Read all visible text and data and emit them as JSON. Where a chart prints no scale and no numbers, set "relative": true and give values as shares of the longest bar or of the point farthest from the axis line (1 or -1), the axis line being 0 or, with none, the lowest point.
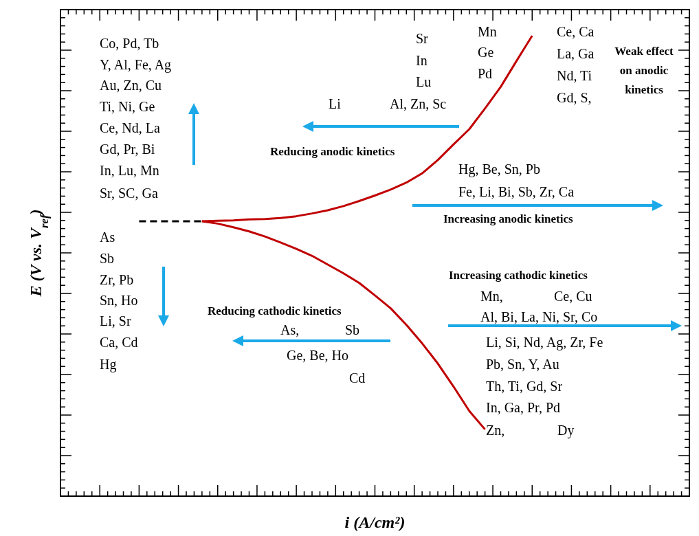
{
  "chart_data": {
    "type": "line",
    "relative": true,
    "xlabel": "i (A/cm²)",
    "ylabel": "E (V vs. V$_{ref}$)",
    "marker": "none",
    "categories": [
      null,
      null,
      null,
      null,
      null,
      null,
      null,
      null,
      null,
      null,
      null,
      null,
      null,
      null,
      null,
      null,
      null,
      null,
      null,
      null,
      null,
      null,
      null,
      null,
      null,
      null,
      null,
      null,
      null,
      null,
      null,
      null,
      null,
      null,
      null,
      null,
      null,
      null,
      null,
      null,
      null
    ],
    "series": [
      {
        "color": "#c00000",
        "line_style": "solid",
        "values": [
          null,
          null,
          null,
          null,
          null,
          null,
          null,
          null,
          null,
          0.597,
          0.598,
          0.599,
          0.601,
          0.602,
          0.604,
          0.608,
          0.614,
          0.621,
          0.63,
          0.641,
          0.653,
          0.666,
          0.681,
          0.701,
          0.73,
          0.764,
          0.797,
          0.842,
          0.889,
          0.945,
          1.0,
          null,
          null,
          null,
          null,
          null,
          null,
          null,
          null,
          null,
          null
        ]
      },
      {
        "color": "#c00000",
        "line_style": "solid",
        "values": [
          null,
          null,
          null,
          null,
          null,
          null,
          null,
          null,
          null,
          0.597,
          0.592,
          0.584,
          0.575,
          0.564,
          0.551,
          0.537,
          0.522,
          0.503,
          0.484,
          0.463,
          0.436,
          0.408,
          0.372,
          0.332,
          0.288,
          0.238,
          0.185,
          0.145,
          null,
          null,
          null,
          null,
          null,
          null,
          null,
          null,
          null,
          null,
          null,
          null,
          null
        ]
      },
      {
        "color": "#000000",
        "line_style": "dashed",
        "values": [
          null,
          null,
          null,
          null,
          null,
          0.597,
          0.597,
          0.597,
          0.597,
          0.597,
          null,
          null,
          null,
          null,
          null,
          null,
          null,
          null,
          null,
          null,
          null,
          null,
          null,
          null,
          null,
          null,
          null,
          null,
          null,
          null,
          null,
          null,
          null,
          null,
          null,
          null,
          null,
          null,
          null,
          null,
          null
        ]
      }
    ],
    "annotations": [
      "Co, Pd, Tb",
      "Y, Al, Fe, Ag",
      "Au, Zn, Cu",
      "Ti, Ni, Ge",
      "Ce, Nd, La",
      "Gd, Pr, Bi",
      "In, Lu, Mn",
      "Sr, SC, Ga",
      "As",
      "Sb",
      "Zr, Pb",
      "Sn, Ho",
      "Li, Sr",
      "Ca, Cd",
      "Hg",
      "Sr",
      "In",
      "Lu",
      "Li",
      "Al, Zn, Sc",
      "Mn",
      "Ge",
      "Pd",
      "Ce, Ca",
      "La, Ga",
      "Nd, Ti",
      "Gd, S,",
      "Weak effect",
      "on anodic",
      "kinetics",
      "Reducing anodic kinetics",
      "Hg, Be, Sn, Pb",
      "Fe, Li, Bi, Sb, Zr, Ca",
      "Increasing anodic kinetics",
      "Increasing cathodic kinetics",
      "Mn,",
      "Ce, Cu",
      "Al, Bi, La, Ni, Sr, Co",
      "Li, Si, Nd, Ag, Zr, Fe",
      "Pb, Sn, Y, Au",
      "Th, Ti, Gd, Sr",
      "In, Ga, Pr, Pd",
      "Zn,",
      "Dy",
      "Reducing cathodic kinetics",
      "As,",
      "Sb",
      "Ge, Be, Ho",
      "Cd"
    ]
  }
}
